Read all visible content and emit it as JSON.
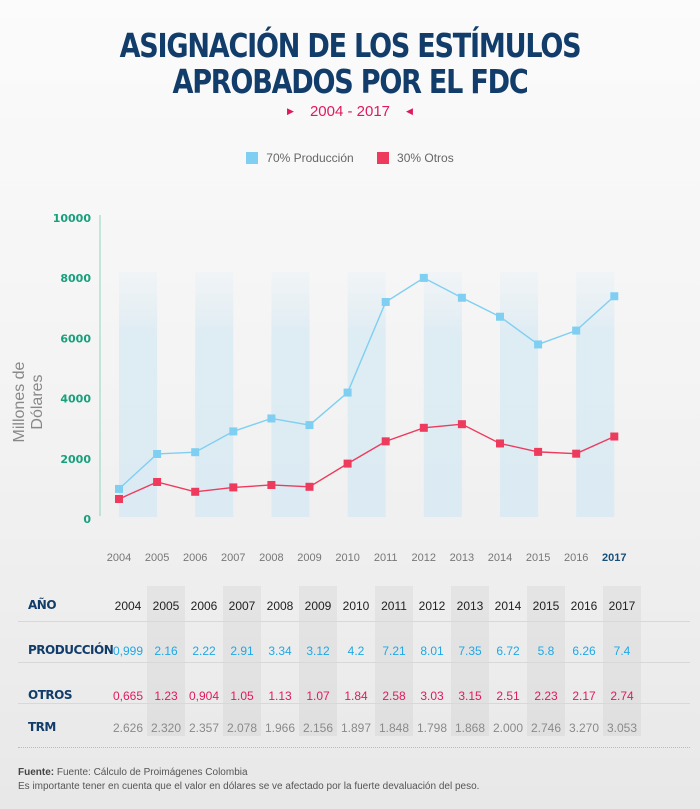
{
  "header": {
    "title_line1": "ASIGNACIÓN DE LOS ESTÍMULOS",
    "title_line2": "APROBADOS POR EL FDC",
    "subtitle": "2004 - 2017",
    "arrow_left": "▶",
    "arrow_right": "◀"
  },
  "colors": {
    "produccion": "#7fcff2",
    "otros": "#ee3a5c",
    "title": "#123d6a",
    "accent": "#e0195f",
    "axis_tick": "#17a07c"
  },
  "chart_data": {
    "type": "line",
    "title": "ASIGNACIÓN DE LOS ESTÍMULOS APROBADOS POR EL FDC",
    "subtitle": "2004 - 2017",
    "xlabel": "",
    "ylabel": "Millones de Dólares",
    "x": [
      "2004",
      "2005",
      "2006",
      "2007",
      "2008",
      "2009",
      "2010",
      "2011",
      "2012",
      "2013",
      "2014",
      "2015",
      "2016",
      "2017"
    ],
    "ylim": [
      0,
      10000
    ],
    "yticks": [
      "0",
      "2000",
      "4000",
      "6000",
      "8000",
      "10000"
    ],
    "legend_position": "top-center",
    "grid": false,
    "series": [
      {
        "name": "70% Producción",
        "values": [
          999,
          2160,
          2220,
          2910,
          3340,
          3120,
          4200,
          7210,
          8010,
          7350,
          6720,
          5800,
          6260,
          7400
        ]
      },
      {
        "name": "30% Otros",
        "values": [
          665,
          1230,
          904,
          1050,
          1130,
          1070,
          1840,
          2580,
          3030,
          3150,
          2510,
          2230,
          2170,
          2740
        ]
      }
    ]
  },
  "table": {
    "header_label": "AÑO",
    "years": [
      "2004",
      "2005",
      "2006",
      "2007",
      "2008",
      "2009",
      "2010",
      "2011",
      "2012",
      "2013",
      "2014",
      "2015",
      "2016",
      "2017"
    ],
    "rows": [
      {
        "label": "PRODUCCIÓN",
        "values": [
          "0,999",
          "2.16",
          "2.22",
          "2.91",
          "3.34",
          "3.12",
          "4.2",
          "7.21",
          "8.01",
          "7.35",
          "6.72",
          "5.8",
          "6.26",
          "7.4"
        ]
      },
      {
        "label": "OTROS",
        "values": [
          "0,665",
          "1.23",
          "0,904",
          "1.05",
          "1.13",
          "1.07",
          "1.84",
          "2.58",
          "3.03",
          "3.15",
          "2.51",
          "2.23",
          "2.17",
          "2.74"
        ]
      },
      {
        "label": "TRM",
        "values": [
          "2.626",
          "2.320",
          "2.357",
          "2.078",
          "1.966",
          "2.156",
          "1.897",
          "1.848",
          "1.798",
          "1.868",
          "2.000",
          "2.746",
          "3.270",
          "3.053"
        ]
      }
    ]
  },
  "footer": {
    "source_label": "Fuente:",
    "source_text": " Fuente: Cálculo de Proimágenes Colombia",
    "note": "Es importante tener en cuenta que el valor en dólares se ve afectado por la fuerte devaluación del peso."
  }
}
